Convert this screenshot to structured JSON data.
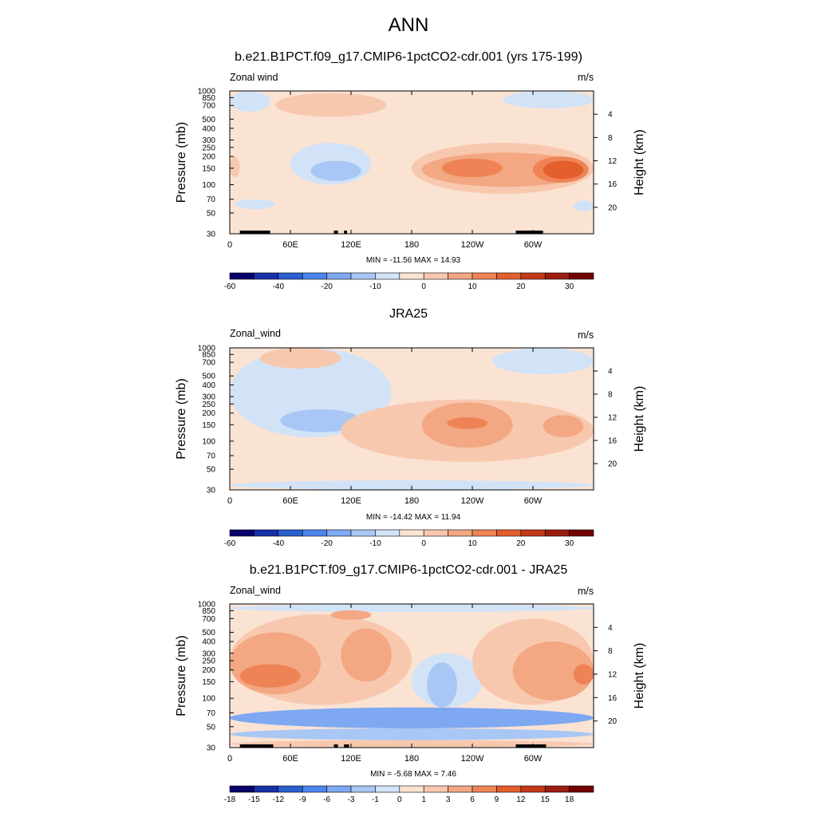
{
  "title": "ANN",
  "colors": {
    "c_m7": "#08006b",
    "c_m6": "#1632a8",
    "c_m5": "#2a5fd0",
    "c_m4": "#4c86ec",
    "c_m3": "#7ea8f2",
    "c_m2": "#a9c7f4",
    "c_m1": "#d2e3f7",
    "c_0": "#fbe3d3",
    "c_1": "#f8c8ae",
    "c_2": "#f3a783",
    "c_3": "#ee8456",
    "c_4": "#e35f2c",
    "c_5": "#c4391b",
    "c_6": "#9c1d10",
    "c_7": "#720000",
    "orography": "#000000"
  },
  "chart_data": [
    {
      "type": "heatmap",
      "title": "b.e21.B1PCT.f09_g17.CMIP6-1pctCO2-cdr.001 (yrs 175-199)",
      "variable_label": "Zonal wind",
      "units": "m/s",
      "ylabel": "Pressure (mb)",
      "ylabel_right": "Height (km)",
      "x_ticks": [
        "0",
        "60E",
        "120E",
        "180",
        "120W",
        "60W"
      ],
      "x_tick_lons": [
        0,
        60,
        120,
        180,
        240,
        300
      ],
      "y_ticks": [
        "30",
        "50",
        "70",
        "100",
        "150",
        "200",
        "250",
        "300",
        "400",
        "500",
        "700",
        "850",
        "1000"
      ],
      "y_tick_values": [
        30,
        50,
        70,
        100,
        150,
        200,
        250,
        300,
        400,
        500,
        700,
        850,
        1000
      ],
      "height_ticks": [
        "20",
        "16",
        "12",
        "8",
        "4"
      ],
      "height_tick_values": [
        20,
        16,
        12,
        8,
        4
      ],
      "min_max_text": "MIN = -11.56  MAX =  14.93",
      "colorbar_levels": [
        -70,
        -60,
        -50,
        -40,
        -30,
        -20,
        -15,
        -10,
        -5,
        0,
        5,
        10,
        15,
        20,
        25,
        30,
        35
      ],
      "colorbar_labels": [
        "-60",
        "-40",
        "-20",
        "-10",
        "0",
        "10",
        "20",
        "30"
      ],
      "xlim": [
        0,
        360
      ],
      "ylim": [
        1000,
        30
      ],
      "orography": [
        [
          10,
          40
        ],
        [
          103,
          107
        ],
        [
          113,
          116
        ],
        [
          283,
          310
        ]
      ],
      "background_class": "c_0",
      "features": [
        {
          "lon": [
            5,
            45
          ],
          "p": [
            55,
            70
          ],
          "cls": "c_m1"
        },
        {
          "lon": [
            360,
            340
          ],
          "p": [
            52,
            68
          ],
          "cls": "c_m1"
        },
        {
          "lon": [
            60,
            140
          ],
          "p": [
            100,
            280
          ],
          "cls": "c_m1"
        },
        {
          "lon": [
            80,
            130
          ],
          "p": [
            110,
            180
          ],
          "cls": "c_m2"
        },
        {
          "lon": [
            0,
            10
          ],
          "p": [
            120,
            200
          ],
          "cls": "c_1"
        },
        {
          "lon": [
            180,
            360
          ],
          "p": [
            80,
            280
          ],
          "cls": "c_1"
        },
        {
          "lon": [
            190,
            355
          ],
          "p": [
            95,
            220
          ],
          "cls": "c_2"
        },
        {
          "lon": [
            210,
            270
          ],
          "p": [
            120,
            190
          ],
          "cls": "c_3"
        },
        {
          "lon": [
            300,
            355
          ],
          "p": [
            105,
            200
          ],
          "cls": "c_3"
        },
        {
          "lon": [
            220,
            260
          ],
          "p": [
            135,
            170
          ],
          "cls": "c_3"
        },
        {
          "lon": [
            310,
            350
          ],
          "p": [
            115,
            180
          ],
          "cls": "c_4"
        },
        {
          "lon": [
            45,
            155
          ],
          "p": [
            530,
            950
          ],
          "cls": "c_1"
        },
        {
          "lon": [
            0,
            40
          ],
          "p": [
            600,
            1000
          ],
          "cls": "c_m1"
        },
        {
          "lon": [
            270,
            360
          ],
          "p": [
            650,
            1000
          ],
          "cls": "c_m1"
        }
      ]
    },
    {
      "type": "heatmap",
      "title": "JRA25",
      "variable_label": "Zonal_wind",
      "units": "m/s",
      "ylabel": "Pressure (mb)",
      "ylabel_right": "Height (km)",
      "x_ticks": [
        "0",
        "60E",
        "120E",
        "180",
        "120W",
        "60W"
      ],
      "x_tick_lons": [
        0,
        60,
        120,
        180,
        240,
        300
      ],
      "y_ticks": [
        "30",
        "50",
        "70",
        "100",
        "150",
        "200",
        "250",
        "300",
        "400",
        "500",
        "700",
        "850",
        "1000"
      ],
      "y_tick_values": [
        30,
        50,
        70,
        100,
        150,
        200,
        250,
        300,
        400,
        500,
        700,
        850,
        1000
      ],
      "height_ticks": [
        "20",
        "16",
        "12",
        "8",
        "4"
      ],
      "height_tick_values": [
        20,
        16,
        12,
        8,
        4
      ],
      "min_max_text": "MIN = -14.42  MAX =  11.94",
      "colorbar_levels": [
        -70,
        -60,
        -50,
        -40,
        -30,
        -20,
        -15,
        -10,
        -5,
        0,
        5,
        10,
        15,
        20,
        25,
        30,
        35
      ],
      "colorbar_labels": [
        "-60",
        "-40",
        "-20",
        "-10",
        "0",
        "10",
        "20",
        "30"
      ],
      "xlim": [
        0,
        360
      ],
      "ylim": [
        1000,
        30
      ],
      "orography": [],
      "background_class": "c_0",
      "features": [
        {
          "lon": [
            0,
            360
          ],
          "p": [
            30,
            38
          ],
          "cls": "c_m1"
        },
        {
          "lon": [
            0,
            160
          ],
          "p": [
            110,
            1000
          ],
          "cls": "c_m1"
        },
        {
          "lon": [
            50,
            130
          ],
          "p": [
            125,
            220
          ],
          "cls": "c_m2"
        },
        {
          "lon": [
            110,
            360
          ],
          "p": [
            60,
            280
          ],
          "cls": "c_1"
        },
        {
          "lon": [
            190,
            280
          ],
          "p": [
            85,
            260
          ],
          "cls": "c_2"
        },
        {
          "lon": [
            310,
            350
          ],
          "p": [
            110,
            190
          ],
          "cls": "c_2"
        },
        {
          "lon": [
            215,
            255
          ],
          "p": [
            135,
            180
          ],
          "cls": "c_3"
        },
        {
          "lon": [
            260,
            360
          ],
          "p": [
            520,
            1000
          ],
          "cls": "c_m1"
        },
        {
          "lon": [
            30,
            110
          ],
          "p": [
            600,
            1000
          ],
          "cls": "c_1"
        }
      ]
    },
    {
      "type": "heatmap",
      "title": "b.e21.B1PCT.f09_g17.CMIP6-1pctCO2-cdr.001 - JRA25",
      "variable_label": "Zonal_wind",
      "units": "m/s",
      "ylabel": "Pressure (mb)",
      "ylabel_right": "Height (km)",
      "x_ticks": [
        "0",
        "60E",
        "120E",
        "180",
        "120W",
        "60W"
      ],
      "x_tick_lons": [
        0,
        60,
        120,
        180,
        240,
        300
      ],
      "y_ticks": [
        "30",
        "50",
        "70",
        "100",
        "150",
        "200",
        "250",
        "300",
        "400",
        "500",
        "700",
        "850",
        "1000"
      ],
      "y_tick_values": [
        30,
        50,
        70,
        100,
        150,
        200,
        250,
        300,
        400,
        500,
        700,
        850,
        1000
      ],
      "height_ticks": [
        "20",
        "16",
        "12",
        "8",
        "4"
      ],
      "height_tick_values": [
        20,
        16,
        12,
        8,
        4
      ],
      "min_max_text": "MIN =  -5.68  MAX =   7.46",
      "colorbar_levels": [
        -21,
        -18,
        -15,
        -12,
        -9,
        -6,
        -3,
        -1,
        0,
        1,
        3,
        6,
        9,
        12,
        15,
        18,
        21
      ],
      "colorbar_labels": [
        "-18",
        "-15",
        "-12",
        "-9",
        "-6",
        "-3",
        "-1",
        "0",
        "1",
        "3",
        "6",
        "9",
        "12",
        "15",
        "18"
      ],
      "xlim": [
        0,
        360
      ],
      "ylim": [
        1000,
        30
      ],
      "orography": [
        [
          10,
          43
        ],
        [
          103,
          107
        ],
        [
          113,
          118
        ],
        [
          283,
          313
        ]
      ],
      "background_class": "c_0",
      "features": [
        {
          "lon": [
            0,
            360
          ],
          "p": [
            30,
            36
          ],
          "cls": "c_1"
        },
        {
          "lon": [
            0,
            360
          ],
          "p": [
            36,
            48
          ],
          "cls": "c_m2"
        },
        {
          "lon": [
            0,
            360
          ],
          "p": [
            48,
            80
          ],
          "cls": "c_m3"
        },
        {
          "lon": [
            180,
            250
          ],
          "p": [
            80,
            300
          ],
          "cls": "c_m1"
        },
        {
          "lon": [
            195,
            225
          ],
          "p": [
            80,
            240
          ],
          "cls": "c_m2"
        },
        {
          "lon": [
            0,
            180
          ],
          "p": [
            85,
            780
          ],
          "cls": "c_1"
        },
        {
          "lon": [
            0,
            90
          ],
          "p": [
            110,
            500
          ],
          "cls": "c_2"
        },
        {
          "lon": [
            10,
            70
          ],
          "p": [
            130,
            230
          ],
          "cls": "c_3"
        },
        {
          "lon": [
            110,
            160
          ],
          "p": [
            150,
            550
          ],
          "cls": "c_2"
        },
        {
          "lon": [
            240,
            360
          ],
          "p": [
            85,
            700
          ],
          "cls": "c_1"
        },
        {
          "lon": [
            280,
            360
          ],
          "p": [
            95,
            400
          ],
          "cls": "c_2"
        },
        {
          "lon": [
            340,
            360
          ],
          "p": [
            140,
            230
          ],
          "cls": "c_3"
        },
        {
          "lon": [
            0,
            360
          ],
          "p": [
            820,
            1000
          ],
          "cls": "c_m1"
        },
        {
          "lon": [
            100,
            140
          ],
          "p": [
            680,
            860
          ],
          "cls": "c_2"
        }
      ]
    }
  ]
}
